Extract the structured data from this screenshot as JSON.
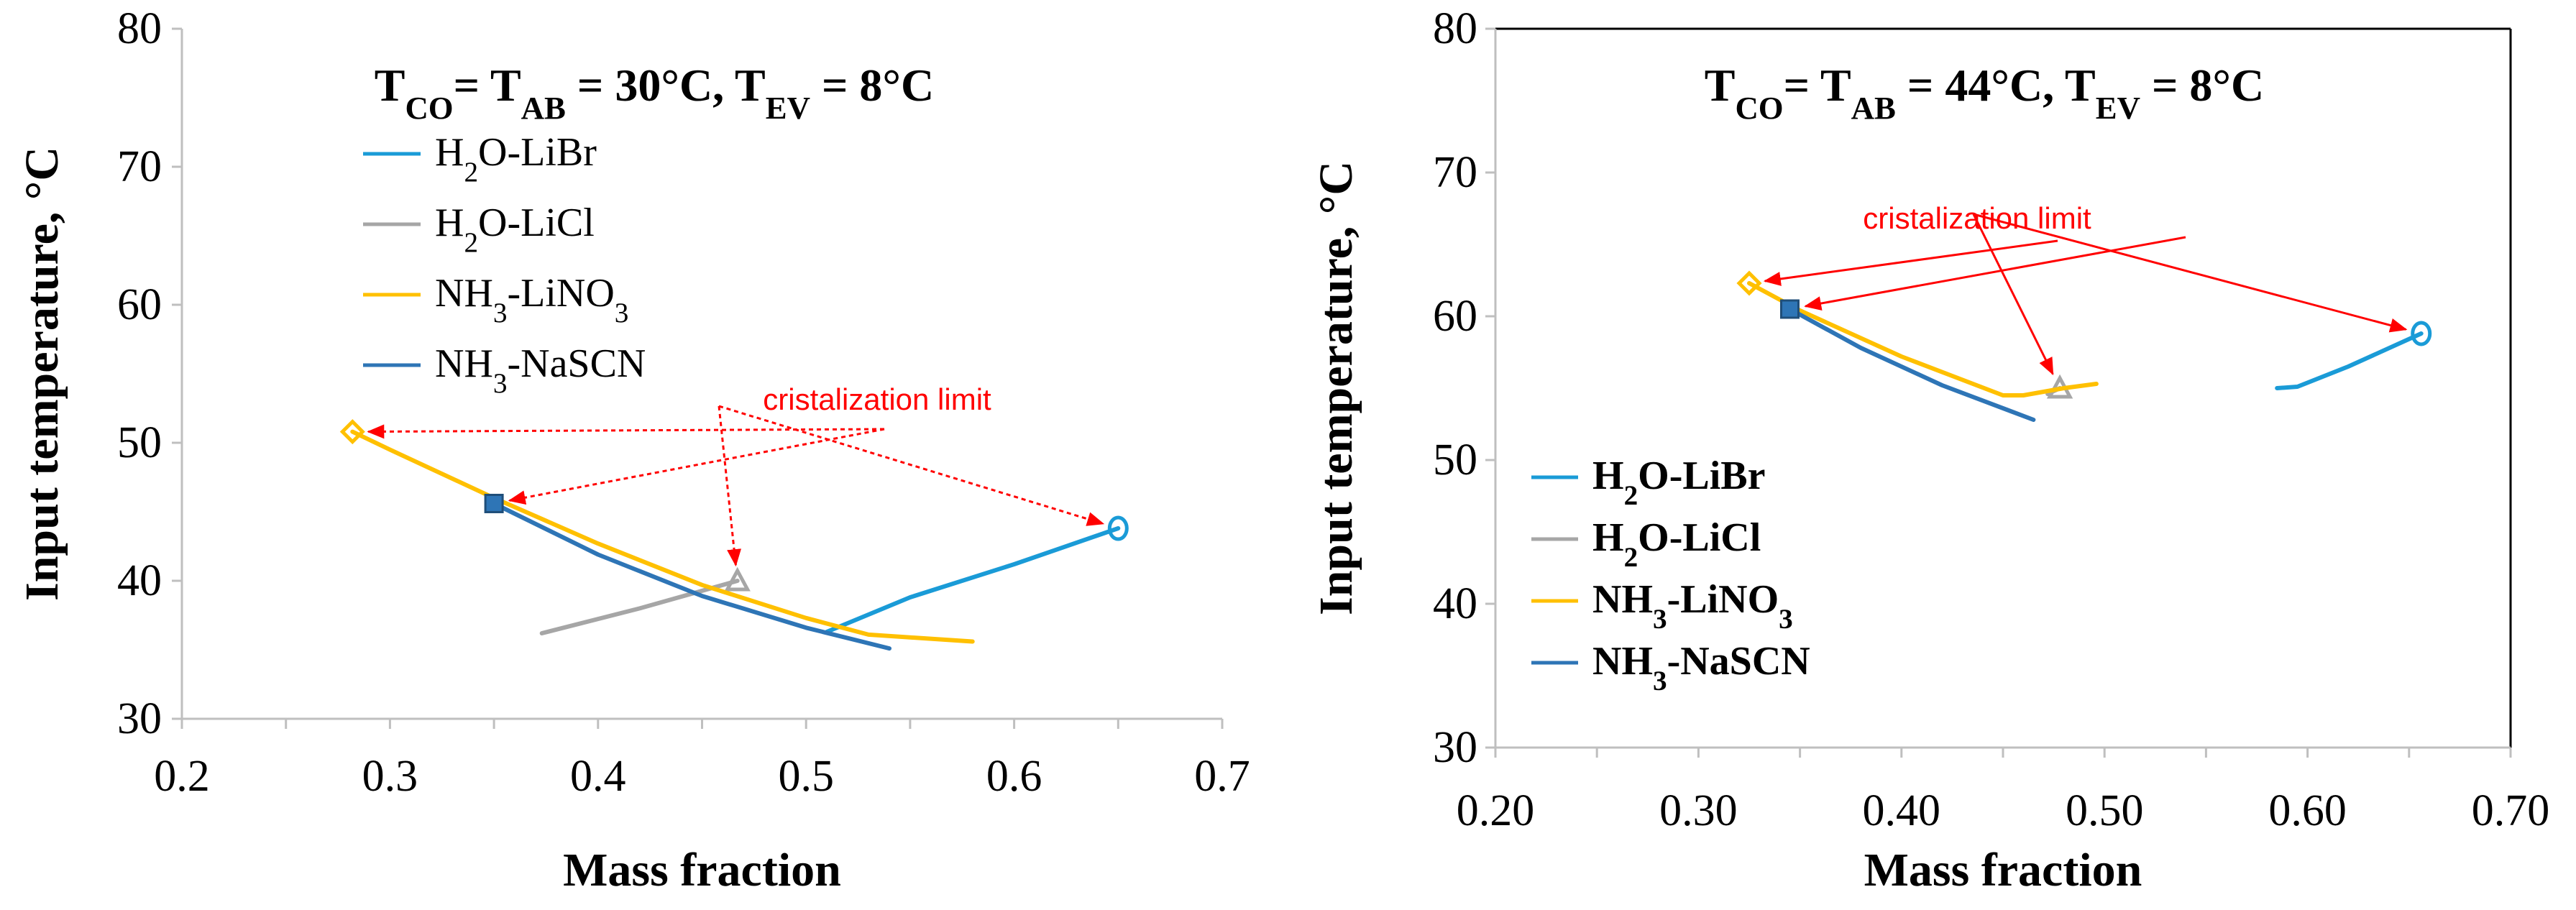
{
  "chart_data": [
    {
      "type": "line",
      "title": {
        "base": "T",
        "parts": [
          [
            "CO",
            "= T"
          ],
          [
            "AB",
            " = 30°C, T"
          ],
          [
            "EV",
            " = 8°C"
          ]
        ]
      },
      "xlabel": "Mass fraction",
      "ylabel": "Input temperature, °C",
      "xlim": [
        0.2,
        0.7
      ],
      "ylim": [
        30,
        80
      ],
      "xticks": [
        0.2,
        0.3,
        0.4,
        0.5,
        0.6,
        0.7
      ],
      "xtick_labels": [
        "0.2",
        "0.3",
        "0.4",
        "0.5",
        "0.6",
        "0.7"
      ],
      "yticks": [
        30,
        40,
        50,
        60,
        70,
        80
      ],
      "ytick_labels": [
        "30",
        "40",
        "50",
        "60",
        "70",
        "80"
      ],
      "grid": false,
      "legend_position": "top-left",
      "annotation": "cristalization limit",
      "series": [
        {
          "name": "H2O-LiBr",
          "label_parts": [
            [
              "H",
              ""
            ],
            [
              "2",
              "O-LiBr"
            ]
          ],
          "color": "#1a9bd7",
          "marker": "circle",
          "x": [
            0.51,
            0.55,
            0.6,
            0.65
          ],
          "y": [
            36.3,
            38.8,
            41.2,
            43.8
          ]
        },
        {
          "name": "H2O-LiCl",
          "label_parts": [
            [
              "H",
              ""
            ],
            [
              "2",
              "O-LiCl"
            ]
          ],
          "color": "#a6a6a6",
          "marker": "triangle",
          "x": [
            0.373,
            0.42,
            0.467
          ],
          "y": [
            36.2,
            38.0,
            40.0
          ]
        },
        {
          "name": "NH3-LiNO3",
          "label_parts": [
            [
              "NH",
              ""
            ],
            [
              "3",
              "-LiNO"
            ],
            [
              "3",
              ""
            ]
          ],
          "color": "#ffc000",
          "marker": "diamond",
          "x": [
            0.282,
            0.3,
            0.35,
            0.4,
            0.45,
            0.5,
            0.53,
            0.58
          ],
          "y": [
            50.8,
            49.5,
            46.0,
            42.7,
            39.7,
            37.3,
            36.1,
            35.6
          ]
        },
        {
          "name": "NH3-NaSCN",
          "label_parts": [
            [
              "NH",
              ""
            ],
            [
              "3",
              "-NaSCN"
            ]
          ],
          "color": "#2e75b6",
          "marker": "square",
          "x": [
            0.35,
            0.4,
            0.45,
            0.5,
            0.54
          ],
          "y": [
            45.6,
            41.9,
            38.9,
            36.6,
            35.1
          ]
        }
      ]
    },
    {
      "type": "line",
      "title": {
        "base": "T",
        "parts": [
          [
            "CO",
            "= T"
          ],
          [
            "AB",
            " = 44°C, T"
          ],
          [
            "EV",
            " = 8°C"
          ]
        ]
      },
      "xlabel": "Mass fraction",
      "ylabel": "Input temperature, °C",
      "xlim": [
        0.2,
        0.7
      ],
      "ylim": [
        30,
        80
      ],
      "xticks": [
        0.2,
        0.3,
        0.4,
        0.5,
        0.6,
        0.7
      ],
      "xtick_labels": [
        "0.20",
        "0.30",
        "0.40",
        "0.50",
        "0.60",
        "0.70"
      ],
      "yticks": [
        30,
        40,
        50,
        60,
        70,
        80
      ],
      "ytick_labels": [
        "30",
        "40",
        "50",
        "60",
        "70",
        "80"
      ],
      "grid": false,
      "legend_position": "bottom-left",
      "annotation": "cristalization limit",
      "series": [
        {
          "name": "H2O-LiBr",
          "label_parts": [
            [
              "H",
              ""
            ],
            [
              "2",
              "O-LiBr"
            ]
          ],
          "color": "#1a9bd7",
          "marker": "circle",
          "x": [
            0.585,
            0.595,
            0.62,
            0.656
          ],
          "y": [
            55.0,
            55.1,
            56.5,
            58.8
          ]
        },
        {
          "name": "H2O-LiCl",
          "label_parts": [
            [
              "H",
              ""
            ],
            [
              "2",
              "O-LiCl"
            ]
          ],
          "color": "#a6a6a6",
          "marker": "triangle",
          "x": [
            0.472,
            0.478
          ],
          "y": [
            54.6,
            55.0
          ]
        },
        {
          "name": "NH3-LiNO3",
          "label_parts": [
            [
              "NH",
              ""
            ],
            [
              "3",
              "-LiNO"
            ],
            [
              "3",
              ""
            ]
          ],
          "color": "#ffc000",
          "marker": "diamond",
          "x": [
            0.325,
            0.35,
            0.4,
            0.45,
            0.46,
            0.48,
            0.496
          ],
          "y": [
            62.3,
            60.4,
            57.2,
            54.5,
            54.5,
            55.0,
            55.3
          ]
        },
        {
          "name": "NH3-NaSCN",
          "label_parts": [
            [
              "NH",
              ""
            ],
            [
              "3",
              "-NaSCN"
            ]
          ],
          "color": "#2e75b6",
          "marker": "square",
          "x": [
            0.345,
            0.38,
            0.42,
            0.465
          ],
          "y": [
            60.5,
            57.8,
            55.2,
            52.8
          ]
        }
      ]
    }
  ]
}
